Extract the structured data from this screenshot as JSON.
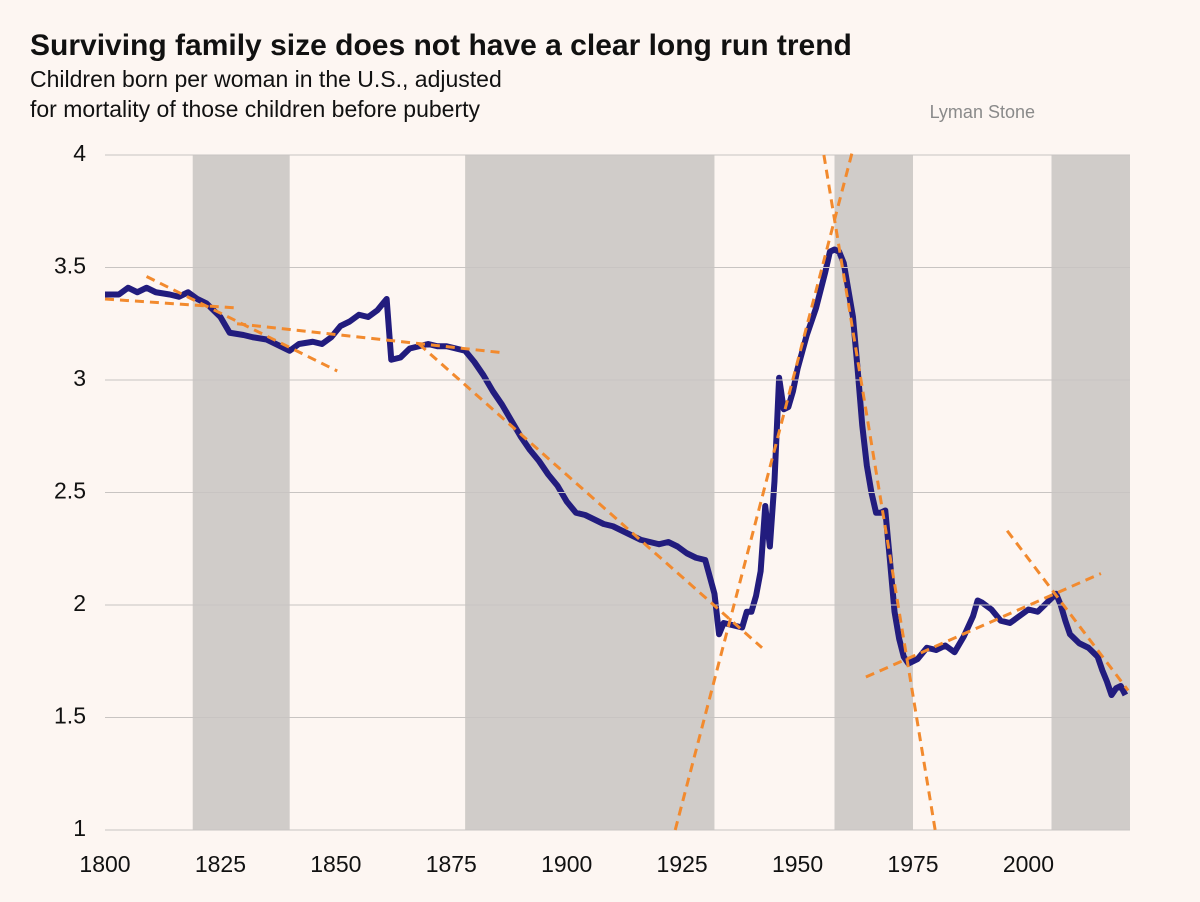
{
  "chart_data": {
    "type": "line",
    "title": "Surviving family size does not have a clear long run trend",
    "subtitle": [
      "Children born per woman in the U.S., adjusted",
      "for mortality of those children before puberty"
    ],
    "source": "Lyman Stone",
    "x": [
      1800,
      1803,
      1805,
      1807,
      1809,
      1811,
      1814,
      1816,
      1818,
      1820,
      1822,
      1825,
      1827,
      1830,
      1832,
      1835,
      1838,
      1840,
      1842,
      1845,
      1847,
      1849,
      1851,
      1853,
      1855,
      1857,
      1859,
      1861,
      1862,
      1864,
      1866,
      1868,
      1870,
      1872,
      1874,
      1876,
      1878,
      1880,
      1882,
      1884,
      1886,
      1888,
      1890,
      1892,
      1894,
      1896,
      1898,
      1900,
      1902,
      1904,
      1906,
      1908,
      1910,
      1912,
      1914,
      1916,
      1918,
      1920,
      1922,
      1924,
      1926,
      1928,
      1930,
      1932,
      1933,
      1934,
      1936,
      1938,
      1939,
      1940,
      1941,
      1942,
      1943,
      1944,
      1945,
      1946,
      1947,
      1948,
      1949,
      1950,
      1952,
      1954,
      1956,
      1957,
      1958,
      1959,
      1960,
      1961,
      1962,
      1963,
      1964,
      1965,
      1966,
      1967,
      1968,
      1969,
      1970,
      1971,
      1972,
      1973,
      1974,
      1976,
      1978,
      1980,
      1982,
      1984,
      1986,
      1988,
      1989,
      1990,
      1992,
      1994,
      1996,
      1998,
      2000,
      2002,
      2004,
      2006,
      2007,
      2008,
      2009,
      2011,
      2013,
      2015,
      2016,
      2017,
      2018,
      2019,
      2020,
      2021
    ],
    "series": [
      {
        "color": "#221c7e",
        "values": [
          3.38,
          3.38,
          3.41,
          3.39,
          3.41,
          3.39,
          3.38,
          3.37,
          3.39,
          3.36,
          3.34,
          3.28,
          3.21,
          3.2,
          3.19,
          3.18,
          3.15,
          3.13,
          3.16,
          3.17,
          3.16,
          3.19,
          3.24,
          3.26,
          3.29,
          3.28,
          3.31,
          3.36,
          3.09,
          3.1,
          3.14,
          3.15,
          3.16,
          3.15,
          3.15,
          3.14,
          3.13,
          3.08,
          3.02,
          2.95,
          2.89,
          2.82,
          2.75,
          2.69,
          2.64,
          2.58,
          2.53,
          2.46,
          2.41,
          2.4,
          2.38,
          2.36,
          2.35,
          2.33,
          2.31,
          2.29,
          2.28,
          2.27,
          2.28,
          2.26,
          2.23,
          2.21,
          2.2,
          2.05,
          1.87,
          1.92,
          1.91,
          1.9,
          1.97,
          1.97,
          2.04,
          2.15,
          2.44,
          2.26,
          2.55,
          3.01,
          2.87,
          2.88,
          2.95,
          3.05,
          3.2,
          3.32,
          3.48,
          3.57,
          3.58,
          3.57,
          3.52,
          3.4,
          3.28,
          3.05,
          2.8,
          2.62,
          2.5,
          2.41,
          2.41,
          2.42,
          2.2,
          1.97,
          1.85,
          1.77,
          1.74,
          1.76,
          1.81,
          1.8,
          1.82,
          1.79,
          1.86,
          1.95,
          2.02,
          2.01,
          1.98,
          1.93,
          1.92,
          1.95,
          1.98,
          1.97,
          2.01,
          2.05,
          2.0,
          1.93,
          1.87,
          1.83,
          1.81,
          1.77,
          1.71,
          1.66,
          1.6,
          1.63,
          1.64,
          1.6
        ]
      }
    ],
    "trend_color": "#f28a2e",
    "trend_lines": [
      {
        "x": [
          1800,
          1828.6
        ],
        "y": [
          3.36,
          3.32
        ]
      },
      {
        "x": [
          1809,
          1850.3
        ],
        "y": [
          3.46,
          3.04
        ]
      },
      {
        "x": [
          1828.6,
          1886.6
        ],
        "y": [
          3.25,
          3.12
        ]
      },
      {
        "x": [
          1868,
          1942.3
        ],
        "y": [
          3.16,
          1.81
        ]
      },
      {
        "x": [
          1923.5,
          1961.8
        ],
        "y": [
          1.0,
          4.01
        ]
      },
      {
        "x": [
          1955.7,
          1979.8
        ],
        "y": [
          4.0,
          1.0
        ]
      },
      {
        "x": [
          1964.8,
          2015.7
        ],
        "y": [
          1.68,
          2.14
        ]
      },
      {
        "x": [
          1995.4,
          2021.6
        ],
        "y": [
          2.33,
          1.62
        ]
      }
    ],
    "band_color": "#d0ccc9",
    "shaded_periods": [
      [
        1819,
        1840
      ],
      [
        1878,
        1932
      ],
      [
        1958,
        1975
      ],
      [
        2005,
        2022
      ]
    ],
    "xlim": [
      1800,
      2022
    ],
    "xticks": [
      1800,
      1825,
      1850,
      1875,
      1900,
      1925,
      1950,
      1975,
      2000
    ],
    "ylim": [
      1,
      4
    ],
    "yticks": [
      1,
      1.5,
      2,
      2.5,
      3,
      3.5,
      4
    ],
    "grid": true
  }
}
